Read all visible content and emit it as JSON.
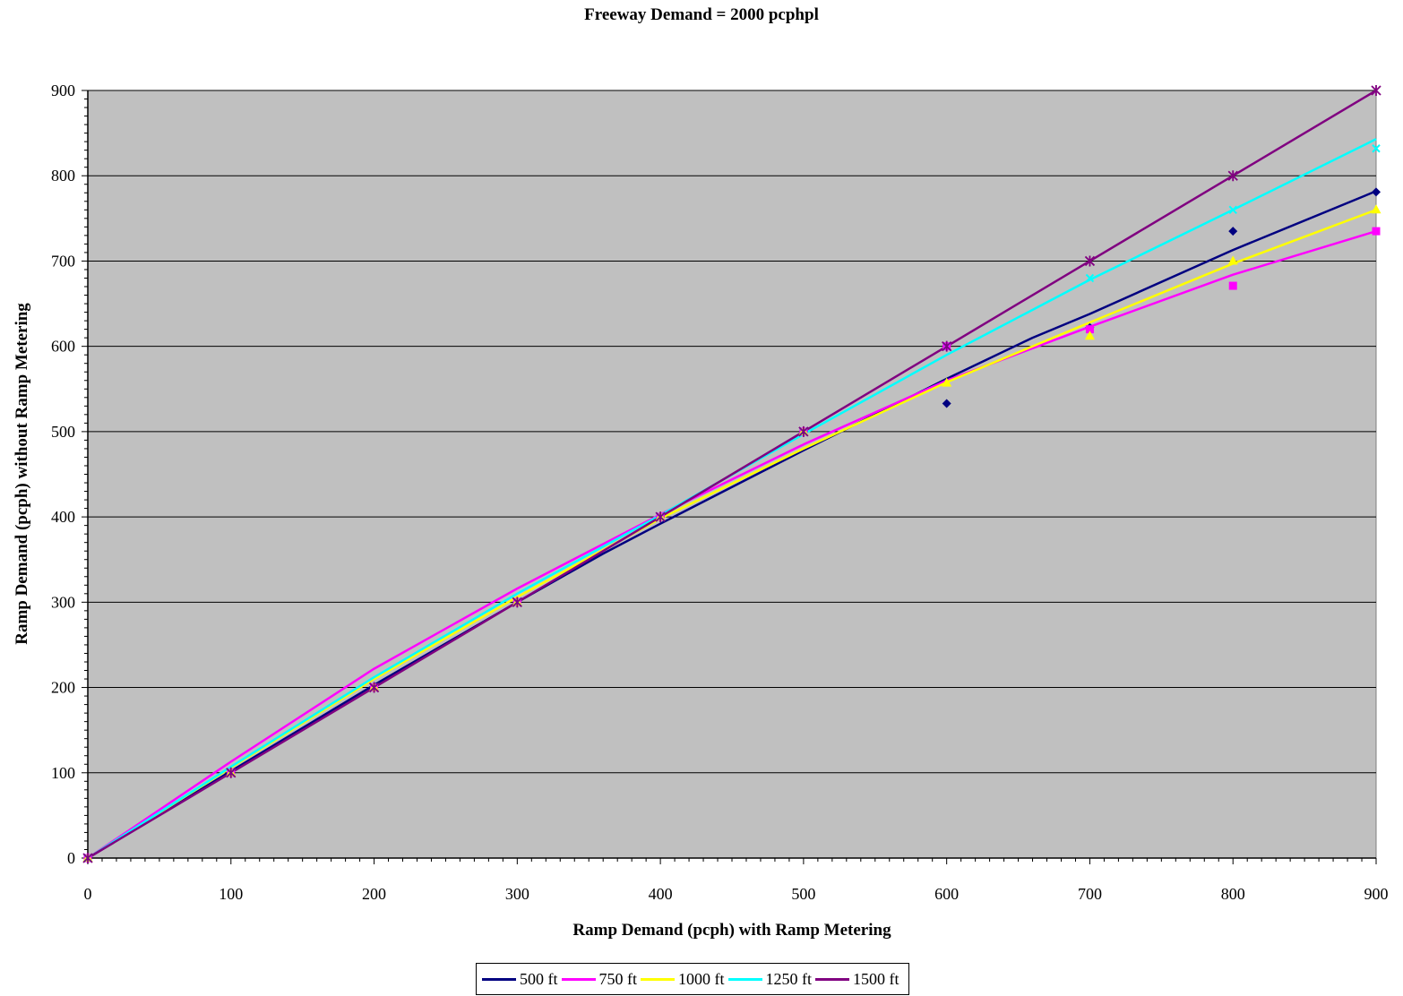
{
  "chart_data": {
    "type": "line",
    "title": "Freeway Demand = 2000 pcphpl",
    "xlabel": "Ramp Demand (pcph) with Ramp Metering",
    "ylabel": "Ramp Demand (pcph) without Ramp Metering",
    "xlim": [
      0,
      900
    ],
    "ylim": [
      0,
      900
    ],
    "xticks": [
      0,
      100,
      200,
      300,
      400,
      500,
      600,
      700,
      800,
      900
    ],
    "yticks": [
      0,
      100,
      200,
      300,
      400,
      500,
      600,
      700,
      800,
      900
    ],
    "grid": "horizontal",
    "background": "#c0c0c0",
    "legend_position": "bottom",
    "series": [
      {
        "name": "500 ft",
        "color": "#000080",
        "marker": "diamond",
        "points": [
          [
            0,
            0
          ],
          [
            100,
            100
          ],
          [
            200,
            200
          ],
          [
            300,
            300
          ],
          [
            400,
            400
          ],
          [
            500,
            500
          ],
          [
            600,
            533
          ],
          [
            700,
            622
          ],
          [
            800,
            735
          ],
          [
            900,
            781
          ]
        ],
        "trend": [
          [
            0,
            0
          ],
          [
            100,
            102
          ],
          [
            200,
            203
          ],
          [
            300,
            300
          ],
          [
            360,
            357
          ],
          [
            400,
            392
          ],
          [
            500,
            478
          ],
          [
            600,
            562
          ],
          [
            660,
            610
          ],
          [
            700,
            638
          ],
          [
            800,
            713
          ],
          [
            900,
            782
          ]
        ]
      },
      {
        "name": "750 ft",
        "color": "#ff00ff",
        "marker": "square",
        "points": [
          [
            0,
            0
          ],
          [
            100,
            100
          ],
          [
            200,
            200
          ],
          [
            300,
            300
          ],
          [
            400,
            400
          ],
          [
            500,
            500
          ],
          [
            600,
            600
          ],
          [
            700,
            620
          ],
          [
            800,
            671
          ],
          [
            900,
            735
          ]
        ],
        "trend": [
          [
            0,
            0
          ],
          [
            100,
            113
          ],
          [
            200,
            222
          ],
          [
            300,
            316
          ],
          [
            400,
            403
          ],
          [
            500,
            485
          ],
          [
            600,
            560
          ],
          [
            700,
            623
          ],
          [
            800,
            684
          ],
          [
            900,
            735
          ]
        ]
      },
      {
        "name": "1000 ft",
        "color": "#ffff00",
        "marker": "triangle",
        "points": [
          [
            0,
            0
          ],
          [
            100,
            100
          ],
          [
            200,
            200
          ],
          [
            300,
            300
          ],
          [
            400,
            400
          ],
          [
            500,
            500
          ],
          [
            600,
            557
          ],
          [
            700,
            612
          ],
          [
            800,
            700
          ],
          [
            900,
            760
          ]
        ],
        "trend": [
          [
            0,
            0
          ],
          [
            100,
            106
          ],
          [
            200,
            210
          ],
          [
            300,
            306
          ],
          [
            400,
            398
          ],
          [
            500,
            480
          ],
          [
            600,
            558
          ],
          [
            700,
            628
          ],
          [
            800,
            697
          ],
          [
            900,
            760
          ]
        ]
      },
      {
        "name": "1250 ft",
        "color": "#00ffff",
        "marker": "x",
        "points": [
          [
            0,
            0
          ],
          [
            100,
            100
          ],
          [
            200,
            200
          ],
          [
            300,
            300
          ],
          [
            400,
            400
          ],
          [
            500,
            500
          ],
          [
            600,
            600
          ],
          [
            700,
            680
          ],
          [
            800,
            760
          ],
          [
            900,
            832
          ]
        ],
        "trend": [
          [
            0,
            0
          ],
          [
            100,
            107
          ],
          [
            200,
            212
          ],
          [
            300,
            310
          ],
          [
            400,
            402
          ],
          [
            500,
            497
          ],
          [
            600,
            590
          ],
          [
            700,
            678
          ],
          [
            800,
            760
          ],
          [
            900,
            843
          ]
        ]
      },
      {
        "name": "1500 ft",
        "color": "#800080",
        "marker": "star",
        "points": [
          [
            0,
            0
          ],
          [
            100,
            100
          ],
          [
            200,
            200
          ],
          [
            300,
            300
          ],
          [
            400,
            400
          ],
          [
            500,
            500
          ],
          [
            600,
            600
          ],
          [
            700,
            700
          ],
          [
            800,
            800
          ],
          [
            900,
            900
          ]
        ],
        "trend": [
          [
            0,
            0
          ],
          [
            100,
            100
          ],
          [
            200,
            200
          ],
          [
            300,
            300
          ],
          [
            400,
            400
          ],
          [
            500,
            500
          ],
          [
            600,
            600
          ],
          [
            700,
            700
          ],
          [
            800,
            800
          ],
          [
            900,
            900
          ]
        ]
      }
    ]
  }
}
